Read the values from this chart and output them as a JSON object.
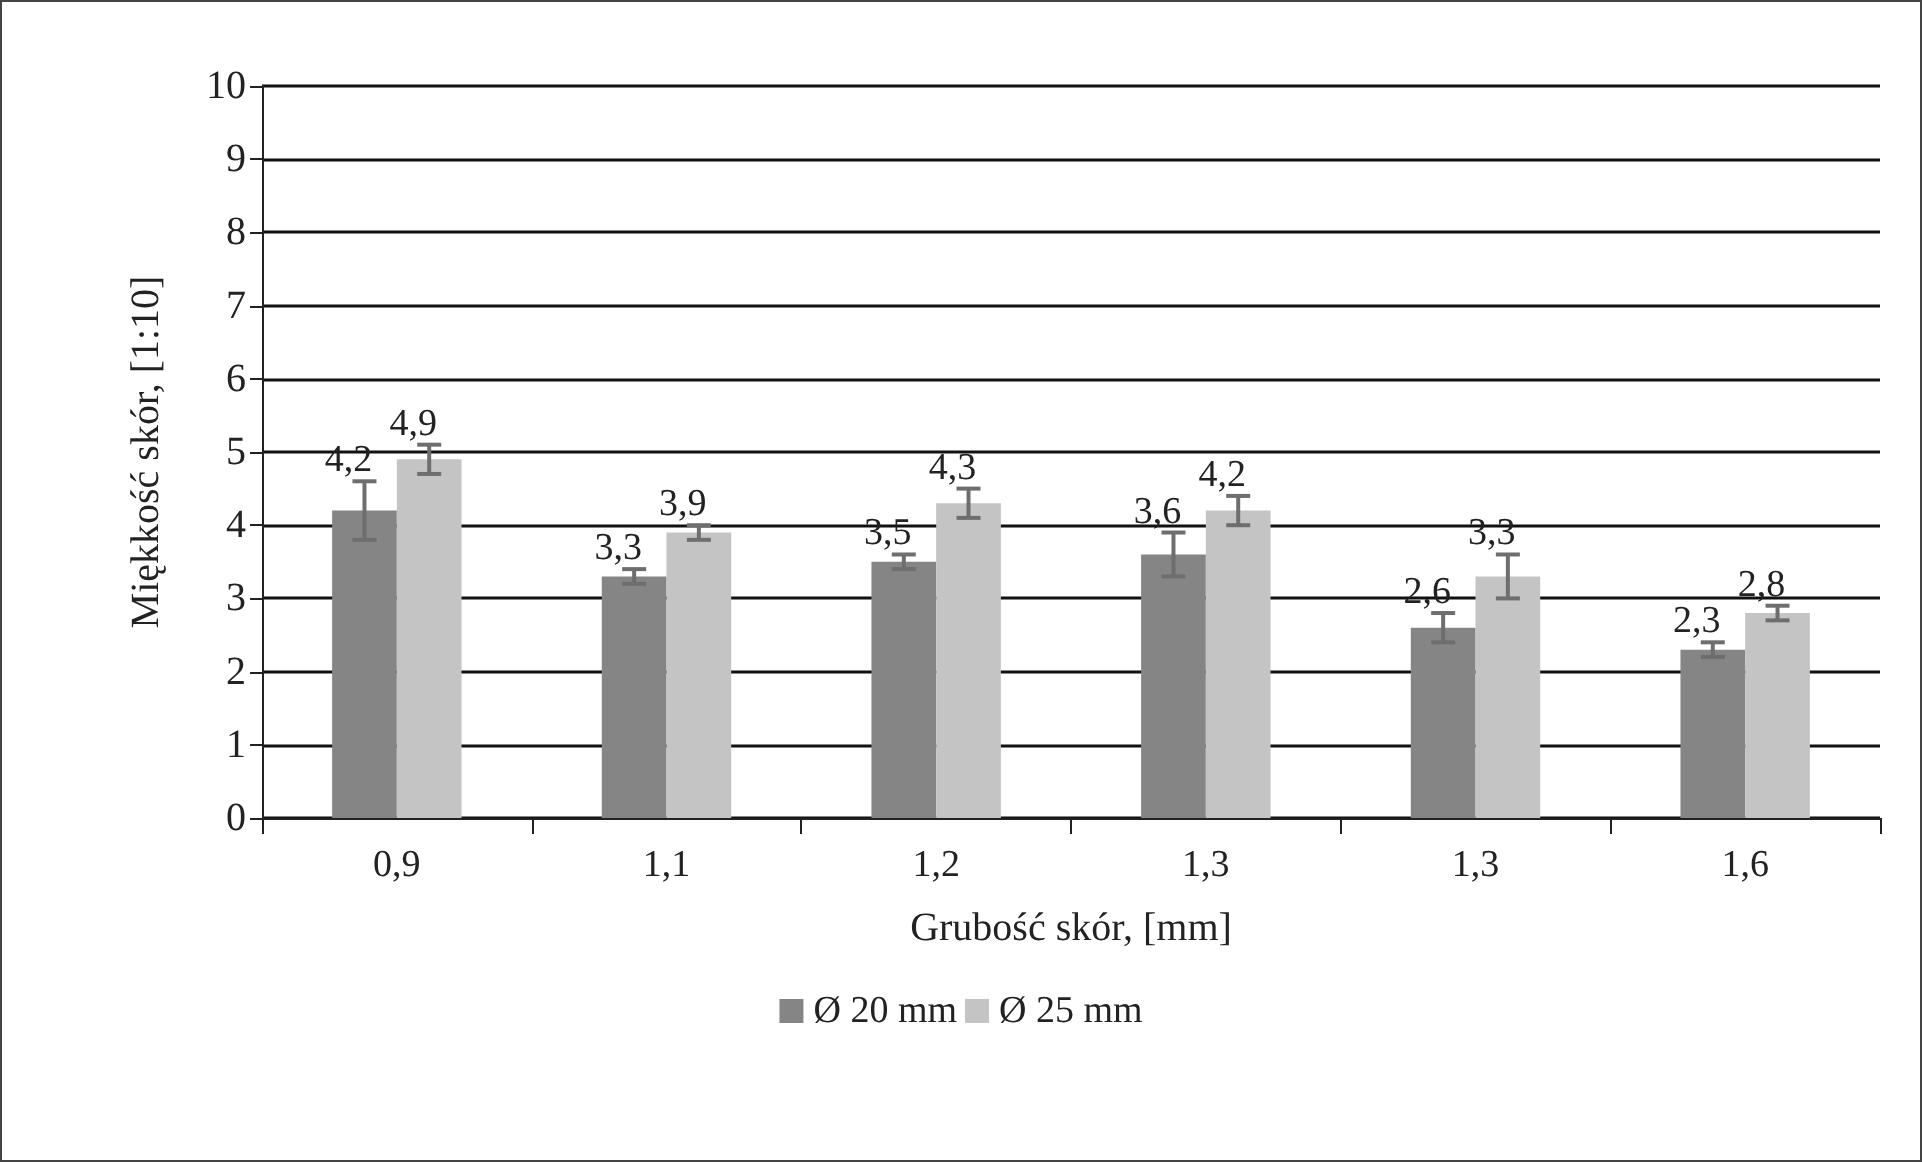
{
  "chart_data": {
    "type": "bar",
    "xlabel": "Grubość skór, [mm]",
    "ylabel": "Miękkość skór, [1:10]",
    "categories": [
      "0,9",
      "1,1",
      "1,2",
      "1,3",
      "1,3",
      "1,6"
    ],
    "series": [
      {
        "name": "Ø 20 mm",
        "color": "#858585",
        "values": [
          4.2,
          3.3,
          3.5,
          3.6,
          2.6,
          2.3
        ],
        "errors": [
          0.4,
          0.1,
          0.1,
          0.3,
          0.2,
          0.1
        ],
        "value_labels": [
          "4,2",
          "3,3",
          "3,5",
          "3,6",
          "2,6",
          "2,3"
        ]
      },
      {
        "name": "Ø 25 mm",
        "color": "#c4c4c4",
        "values": [
          4.9,
          3.9,
          4.3,
          4.2,
          3.3,
          2.8
        ],
        "errors": [
          0.2,
          0.1,
          0.2,
          0.2,
          0.3,
          0.1
        ],
        "value_labels": [
          "4,9",
          "3,9",
          "4,3",
          "4,2",
          "3,3",
          "2,8"
        ]
      }
    ],
    "ylim": [
      0,
      10
    ],
    "yticks": [
      0,
      1,
      2,
      3,
      4,
      5,
      6,
      7,
      8,
      9,
      10
    ],
    "grid": "y",
    "legend": "bottom"
  }
}
